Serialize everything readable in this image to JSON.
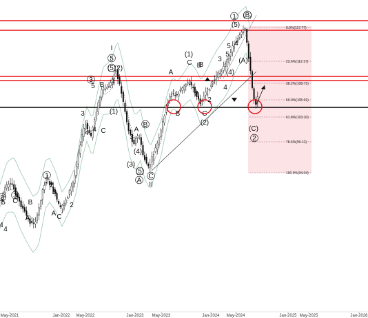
{
  "chart_data": {
    "type": "candlestick",
    "title": "",
    "x_tick_labels": [
      "May-2021",
      "Jan-2022",
      "May-2022",
      "Jan-2023",
      "May-2023",
      "Jan-2024",
      "May-2024",
      "Jan-2025",
      "May-2025",
      "Jan-2026"
    ],
    "fibonacci_levels": [
      {
        "ratio": "0.0%",
        "value": "117.77",
        "label": "0.0%(117.77)"
      },
      {
        "ratio": "23.6%",
        "value": "112.17",
        "label": "23.6%(112.17)"
      },
      {
        "ratio": "38.2%",
        "value": "108.71",
        "label": "38.2%(108.71)"
      },
      {
        "ratio": "50.0%",
        "value": "105.91",
        "label": "50.0%(105.91)"
      },
      {
        "ratio": "61.8%",
        "value": "103.10",
        "label": "61.8%(103.10)"
      },
      {
        "ratio": "78.6%",
        "value": "99.12",
        "label": "78.6%(99.12)"
      },
      {
        "ratio": "100.0%",
        "value": "94.04",
        "label": "100.0%(94.04)"
      }
    ],
    "wave_labels": [
      "3",
      "5",
      "4",
      "3",
      "C",
      "A",
      "B",
      "4",
      "1",
      "2",
      "B",
      "C",
      "4",
      "A",
      "2",
      "3",
      "5",
      "B",
      "4",
      "3",
      "C",
      "1",
      "I",
      "5",
      "(5)",
      "(2)",
      "(1)",
      "B",
      "A",
      "3",
      "(3)",
      "(4)",
      "(5)",
      "A",
      "II",
      "C",
      "A",
      "(1)",
      "C",
      "B",
      "A",
      "2",
      "B",
      "C",
      "(2)",
      "3",
      "5",
      "4",
      "(4)",
      "(A)",
      "(5)",
      "1",
      "(B)",
      "(C)",
      "2"
    ],
    "colors": {
      "bull_candle": "#111111",
      "bear_candle": "#111111",
      "resistance_line": "#e8141c",
      "support_line": "#000000",
      "fib_zone": "#fbe3e6",
      "bollinger": "#9cc7b0",
      "moving_average": "#555555"
    }
  }
}
